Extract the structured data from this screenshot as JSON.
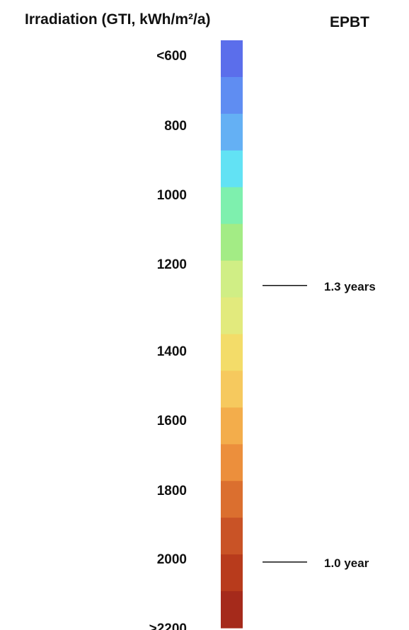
{
  "chart_data": {
    "type": "heatmap",
    "title": "Irradiation (GTI,  kWh/m²/a)",
    "secondary_title": "EPBT",
    "unit": "kWh/m²/a",
    "vmin": 600,
    "vmax": 2200,
    "ticks": [
      {
        "label": "<600",
        "value": 600
      },
      {
        "label": "800",
        "value": 800
      },
      {
        "label": "1000",
        "value": 1000
      },
      {
        "label": "1200",
        "value": 1200
      },
      {
        "label": "1400",
        "value": 1400
      },
      {
        "label": "1600",
        "value": 1600
      },
      {
        "label": "1800",
        "value": 1800
      },
      {
        "label": "2000",
        "value": 2000
      },
      {
        "label": ">2200",
        "value": 2200
      }
    ],
    "color_steps": [
      "#5b6eeb",
      "#5f8df2",
      "#64b0f4",
      "#62e2f4",
      "#7ef0ae",
      "#a3ec85",
      "#d0ee85",
      "#e2ea7d",
      "#f3dc69",
      "#f6c95e",
      "#f3ad4b",
      "#ec8f3c",
      "#db6f2f",
      "#c95326",
      "#b83b1c",
      "#a52a1b"
    ],
    "epbt_markers": [
      {
        "label": "1.3 years",
        "irradiation": 1250
      },
      {
        "label": "1.0 year",
        "irradiation": 2010
      }
    ],
    "grid": false,
    "legend": "none"
  }
}
